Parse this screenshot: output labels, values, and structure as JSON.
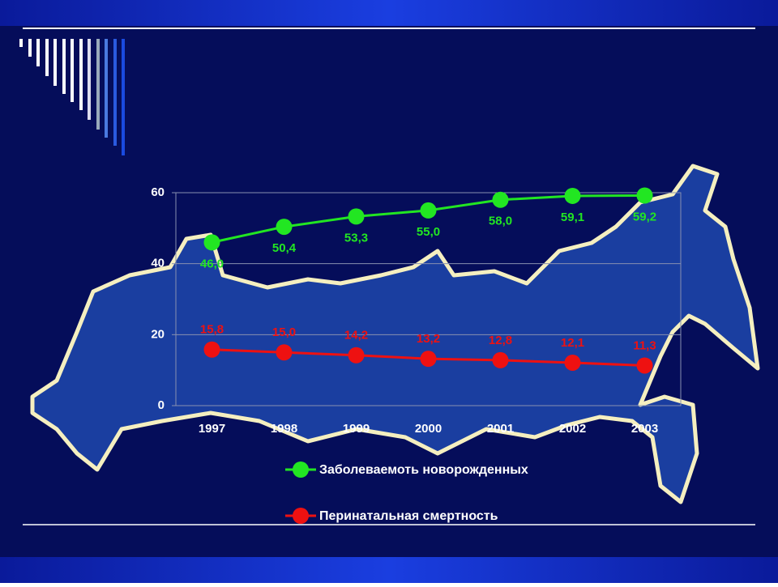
{
  "chart_data": {
    "type": "line",
    "categories": [
      "1997",
      "1998",
      "1999",
      "2000",
      "2001",
      "2002",
      "2003"
    ],
    "series": [
      {
        "name": "Заболеваемоть новорожденных",
        "color": "#22e622",
        "values": [
          46.0,
          50.4,
          53.3,
          55.0,
          58.0,
          59.1,
          59.2
        ],
        "value_labels": [
          "46,0",
          "50,4",
          "53,3",
          "55,0",
          "58,0",
          "59,1",
          "59,2"
        ]
      },
      {
        "name": "Перинатальная смертность",
        "color": "#ee1111",
        "values": [
          15.8,
          15.0,
          14.2,
          13.2,
          12.8,
          12.1,
          11.3
        ],
        "value_labels": [
          "15,8",
          "15,0",
          "14,2",
          "13,2",
          "12,8",
          "12,1",
          "11,3"
        ]
      }
    ],
    "ylim": [
      0,
      60
    ],
    "yticks": [
      0,
      20,
      40,
      60
    ],
    "grid": true
  }
}
